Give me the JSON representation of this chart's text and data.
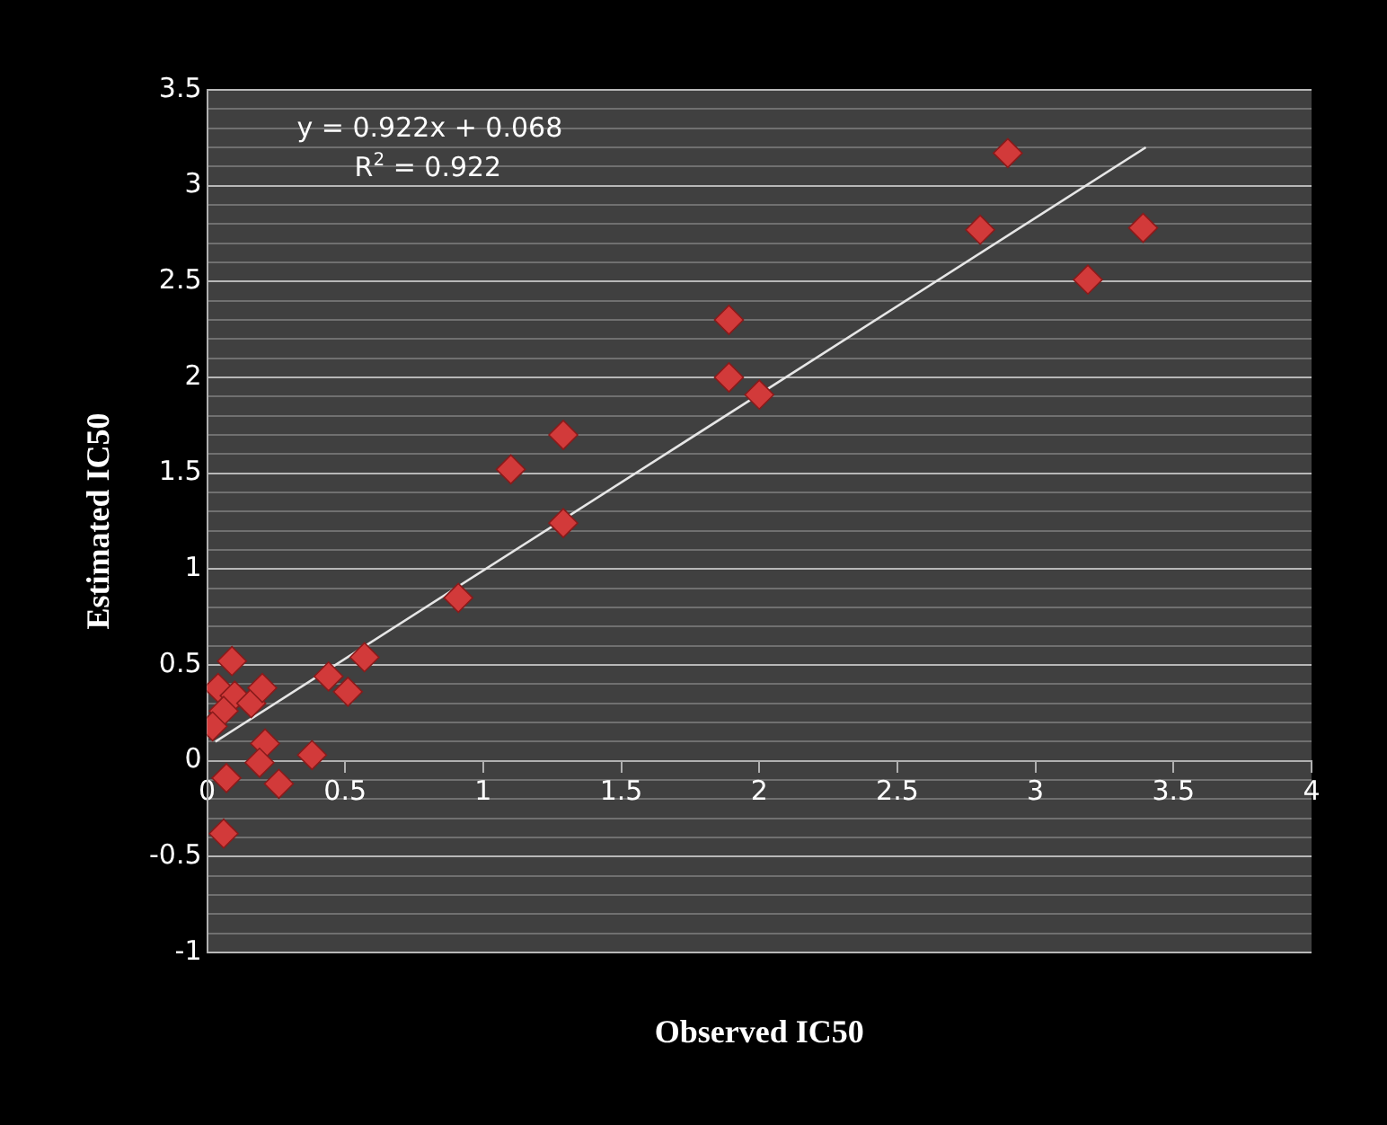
{
  "chart_data": {
    "type": "scatter",
    "xlabel": "Observed IC50",
    "ylabel": "Estimated IC50",
    "annotations": [
      "y = 0.922x + 0.068",
      "R$^{2}$ = 0.922"
    ],
    "xlim": [
      0,
      4
    ],
    "ylim": [
      -1,
      3.5
    ],
    "xticks": [
      0,
      0.5,
      1,
      1.5,
      2,
      2.5,
      3,
      3.5,
      4
    ],
    "yticks": [
      -1,
      {
        "value": -0.9,
        "label": null
      },
      {
        "value": -0.8,
        "label": null
      },
      {
        "value": -0.7,
        "label": null
      },
      {
        "value": -0.6,
        "label": null
      },
      -0.5,
      {
        "value": -0.4,
        "label": null
      },
      {
        "value": -0.3,
        "label": null
      },
      {
        "value": -0.2,
        "label": null
      },
      {
        "value": -0.1,
        "label": null
      },
      0,
      {
        "value": 0.1,
        "label": null
      },
      {
        "value": 0.2,
        "label": null
      },
      {
        "value": 0.3,
        "label": null
      },
      {
        "value": 0.4,
        "label": null
      },
      0.5,
      {
        "value": 0.6,
        "label": null
      },
      {
        "value": 0.7,
        "label": null
      },
      {
        "value": 0.8,
        "label": null
      },
      {
        "value": 0.9,
        "label": null
      },
      1,
      {
        "value": 1.1,
        "label": null
      },
      {
        "value": 1.2,
        "label": null
      },
      {
        "value": 1.3,
        "label": null
      },
      {
        "value": 1.4,
        "label": null
      },
      1.5,
      {
        "value": 1.6,
        "label": null
      },
      {
        "value": 1.7,
        "label": null
      },
      {
        "value": 1.8,
        "label": null
      },
      {
        "value": 1.9,
        "label": null
      },
      2,
      {
        "value": 2.1,
        "label": null
      },
      {
        "value": 2.2,
        "label": null
      },
      {
        "value": 2.3,
        "label": null
      },
      {
        "value": 2.4,
        "label": null
      },
      2.5,
      {
        "value": 2.6,
        "label": null
      },
      {
        "value": 2.7,
        "label": null
      },
      {
        "value": 2.8,
        "label": null
      },
      {
        "value": 2.9,
        "label": null
      },
      3,
      {
        "value": 3.1,
        "label": null
      },
      {
        "value": 3.2,
        "label": null
      },
      {
        "value": 3.3,
        "label": null
      },
      {
        "value": 3.4,
        "label": null
      },
      3.5
    ],
    "grid": "y",
    "legend": false,
    "marker": "diamond",
    "series": [
      {
        "color": "#d23a3a",
        "x": [
          0.09,
          0.04,
          0.1,
          0.16,
          0.2,
          0.06,
          0.02,
          0.21,
          0.19,
          0.07,
          0.26,
          0.38,
          0.06,
          0.44,
          0.51,
          0.57,
          0.91,
          1.1,
          1.29,
          1.29,
          1.89,
          1.89,
          2.0,
          2.8,
          2.9,
          3.19,
          3.39
        ],
        "values": [
          0.52,
          0.38,
          0.34,
          0.3,
          0.38,
          0.26,
          0.18,
          0.09,
          -0.01,
          -0.09,
          -0.12,
          0.03,
          -0.38,
          0.44,
          0.36,
          0.54,
          0.85,
          1.52,
          1.7,
          1.24,
          2.3,
          2.0,
          1.91,
          2.77,
          3.17,
          2.51,
          2.78
        ]
      },
      {
        "type": "line",
        "color": "#e6e6e6",
        "marker": "none",
        "x": [
          0.03,
          3.4
        ],
        "values": [
          0.1,
          3.2
        ]
      }
    ]
  }
}
